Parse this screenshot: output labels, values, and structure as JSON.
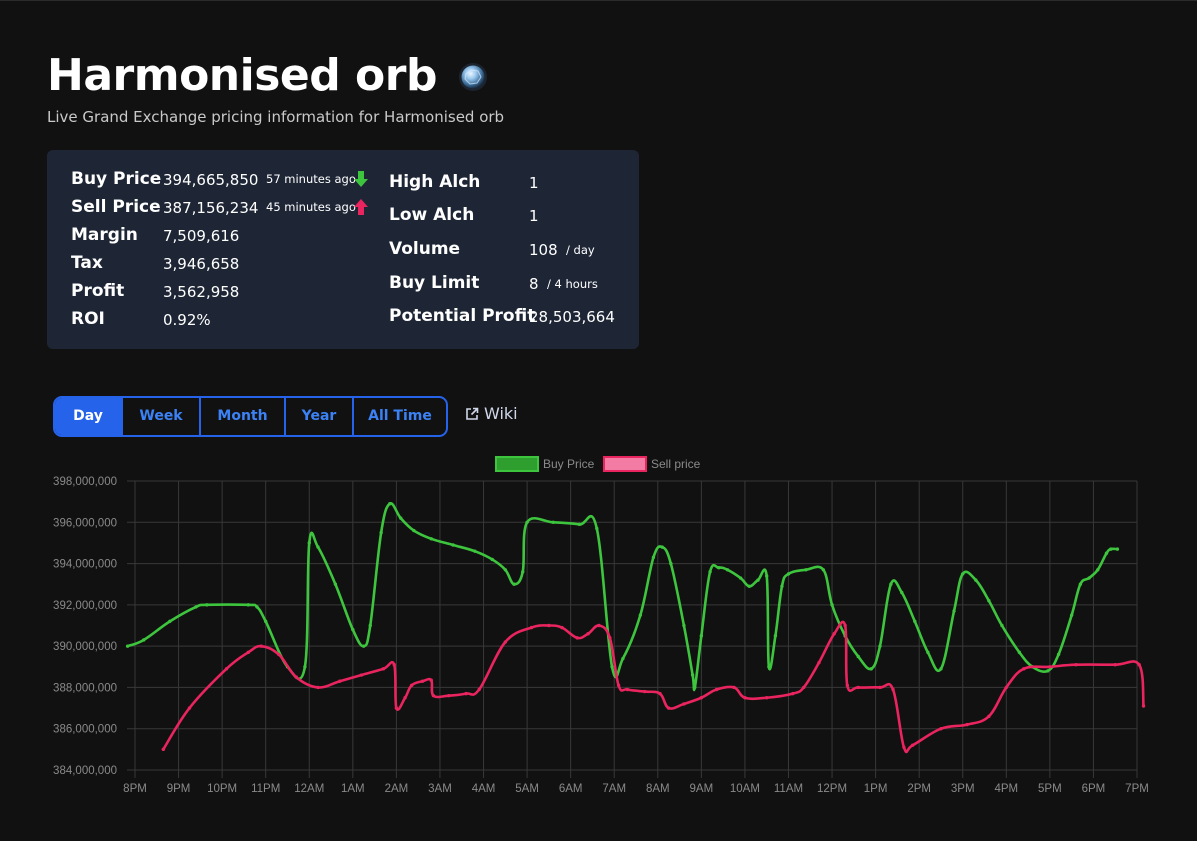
{
  "header": {
    "title": "Harmonised orb",
    "subtitle": "Live Grand Exchange pricing information for Harmonised orb",
    "icon": "harmonised-orb-icon"
  },
  "stats": {
    "buy_price": {
      "label": "Buy Price",
      "value": "394,665,850",
      "ago": "57 minutes ago",
      "trend": "down",
      "trend_color": "#3ec53e"
    },
    "sell_price": {
      "label": "Sell Price",
      "value": "387,156,234",
      "ago": "45 minutes ago",
      "trend": "up",
      "trend_color": "#e9245e"
    },
    "margin": {
      "label": "Margin",
      "value": "7,509,616"
    },
    "tax": {
      "label": "Tax",
      "value": "3,946,658"
    },
    "profit": {
      "label": "Profit",
      "value": "3,562,958"
    },
    "roi": {
      "label": "ROI",
      "value": "0.92%"
    },
    "high_alch": {
      "label": "High Alch",
      "value": "1"
    },
    "low_alch": {
      "label": "Low Alch",
      "value": "1"
    },
    "volume": {
      "label": "Volume",
      "value": "108",
      "unit": "/ day"
    },
    "buy_limit": {
      "label": "Buy Limit",
      "value": "8",
      "unit": "/ 4 hours"
    },
    "potential_profit": {
      "label": "Potential Profit",
      "value": "28,503,664"
    }
  },
  "tabs": [
    {
      "label": "Day",
      "active": true
    },
    {
      "label": "Week",
      "active": false
    },
    {
      "label": "Month",
      "active": false
    },
    {
      "label": "Year",
      "active": false
    },
    {
      "label": "All Time",
      "active": false
    }
  ],
  "wiki_link": "Wiki",
  "colors": {
    "background": "#111111",
    "panel": "#1e2636",
    "accent": "#2563eb",
    "buy": "#3ec53e",
    "sell": "#e9245e"
  },
  "chart_data": {
    "type": "line",
    "legend_position": "top",
    "grid": true,
    "x_ticks": [
      "8PM",
      "9PM",
      "10PM",
      "11PM",
      "12AM",
      "1AM",
      "2AM",
      "3AM",
      "4AM",
      "5AM",
      "6AM",
      "7AM",
      "8AM",
      "9AM",
      "10AM",
      "11AM",
      "12PM",
      "1PM",
      "2PM",
      "3PM",
      "4PM",
      "5PM",
      "6PM",
      "7PM"
    ],
    "y_ticks": [
      "384,000,000",
      "386,000,000",
      "388,000,000",
      "390,000,000",
      "392,000,000",
      "394,000,000",
      "396,000,000",
      "398,000,000"
    ],
    "xlim": [
      0,
      23.0
    ],
    "ylim": [
      384000000,
      398000000
    ],
    "series": [
      {
        "name": "Buy Price",
        "color": "#3ec53e",
        "fill": "#2e9e2e",
        "points": [
          [
            -0.17,
            390000000
          ],
          [
            0.2,
            390300000
          ],
          [
            0.8,
            391200000
          ],
          [
            1.4,
            391900000
          ],
          [
            1.65,
            392000000
          ],
          [
            2.6,
            392000000
          ],
          [
            2.8,
            391900000
          ],
          [
            3.0,
            391200000
          ],
          [
            3.5,
            389000000
          ],
          [
            3.9,
            389000000
          ],
          [
            4.0,
            395000000
          ],
          [
            4.2,
            394800000
          ],
          [
            4.6,
            393000000
          ],
          [
            5.0,
            390800000
          ],
          [
            5.25,
            390000000
          ],
          [
            5.4,
            391000000
          ],
          [
            5.65,
            395500000
          ],
          [
            5.85,
            396900000
          ],
          [
            6.1,
            396200000
          ],
          [
            6.4,
            395600000
          ],
          [
            6.8,
            395200000
          ],
          [
            7.3,
            394900000
          ],
          [
            7.8,
            394600000
          ],
          [
            8.2,
            394200000
          ],
          [
            8.5,
            393700000
          ],
          [
            8.7,
            393000000
          ],
          [
            8.9,
            393600000
          ],
          [
            9.0,
            396000000
          ],
          [
            9.6,
            396000000
          ],
          [
            10.2,
            395900000
          ],
          [
            10.6,
            395700000
          ],
          [
            10.95,
            389000000
          ],
          [
            11.2,
            389400000
          ],
          [
            11.6,
            391500000
          ],
          [
            11.9,
            394300000
          ],
          [
            12.1,
            394800000
          ],
          [
            12.3,
            394000000
          ],
          [
            12.6,
            391000000
          ],
          [
            12.8,
            388600000
          ],
          [
            12.85,
            388000000
          ],
          [
            13.0,
            390500000
          ],
          [
            13.2,
            393600000
          ],
          [
            13.4,
            393800000
          ],
          [
            13.6,
            393700000
          ],
          [
            13.9,
            393300000
          ],
          [
            14.1,
            392900000
          ],
          [
            14.3,
            393200000
          ],
          [
            14.5,
            393400000
          ],
          [
            14.55,
            389000000
          ],
          [
            14.7,
            390500000
          ],
          [
            14.85,
            392900000
          ],
          [
            15.0,
            393500000
          ],
          [
            15.4,
            393700000
          ],
          [
            15.8,
            393700000
          ],
          [
            16.0,
            392000000
          ],
          [
            16.3,
            390500000
          ],
          [
            16.6,
            389500000
          ],
          [
            16.9,
            388900000
          ],
          [
            17.1,
            390000000
          ],
          [
            17.35,
            393000000
          ],
          [
            17.6,
            392600000
          ],
          [
            17.9,
            391200000
          ],
          [
            18.2,
            389700000
          ],
          [
            18.5,
            388900000
          ],
          [
            18.8,
            391700000
          ],
          [
            19.0,
            393500000
          ],
          [
            19.3,
            393200000
          ],
          [
            19.6,
            392200000
          ],
          [
            19.9,
            391000000
          ],
          [
            20.3,
            389700000
          ],
          [
            20.6,
            389000000
          ],
          [
            20.95,
            388800000
          ],
          [
            21.2,
            389600000
          ],
          [
            21.5,
            391500000
          ],
          [
            21.7,
            393000000
          ],
          [
            21.9,
            393300000
          ],
          [
            22.1,
            393700000
          ],
          [
            22.3,
            394500000
          ],
          [
            22.4,
            394700000
          ],
          [
            22.55,
            394700000
          ]
        ]
      },
      {
        "name": "Sell price",
        "color": "#e9245e",
        "fill": "#f27ca4",
        "points": [
          [
            0.65,
            385000000
          ],
          [
            1.25,
            387000000
          ],
          [
            2.1,
            388900000
          ],
          [
            2.6,
            389700000
          ],
          [
            2.9,
            390000000
          ],
          [
            3.3,
            389600000
          ],
          [
            3.7,
            388500000
          ],
          [
            4.2,
            388000000
          ],
          [
            4.7,
            388300000
          ],
          [
            5.2,
            388600000
          ],
          [
            5.7,
            388900000
          ],
          [
            5.95,
            389100000
          ],
          [
            6.0,
            387000000
          ],
          [
            6.2,
            387500000
          ],
          [
            6.35,
            388100000
          ],
          [
            6.6,
            388300000
          ],
          [
            6.8,
            388350000
          ],
          [
            6.85,
            387600000
          ],
          [
            7.2,
            387600000
          ],
          [
            7.6,
            387700000
          ],
          [
            7.9,
            387900000
          ],
          [
            8.5,
            390200000
          ],
          [
            9.1,
            390900000
          ],
          [
            9.5,
            391000000
          ],
          [
            9.8,
            390900000
          ],
          [
            10.15,
            390400000
          ],
          [
            10.4,
            390600000
          ],
          [
            10.65,
            391000000
          ],
          [
            10.9,
            390400000
          ],
          [
            11.1,
            388100000
          ],
          [
            11.3,
            387900000
          ],
          [
            11.7,
            387800000
          ],
          [
            12.05,
            387700000
          ],
          [
            12.25,
            387000000
          ],
          [
            12.6,
            387200000
          ],
          [
            13.0,
            387500000
          ],
          [
            13.35,
            387900000
          ],
          [
            13.75,
            388000000
          ],
          [
            14.0,
            387500000
          ],
          [
            14.5,
            387500000
          ],
          [
            15.1,
            387700000
          ],
          [
            15.35,
            388000000
          ],
          [
            15.7,
            389200000
          ],
          [
            16.05,
            390600000
          ],
          [
            16.3,
            391000000
          ],
          [
            16.35,
            388100000
          ],
          [
            16.6,
            388000000
          ],
          [
            17.1,
            388000000
          ],
          [
            17.4,
            387900000
          ],
          [
            17.65,
            385100000
          ],
          [
            17.85,
            385200000
          ],
          [
            18.5,
            386000000
          ],
          [
            19.1,
            386200000
          ],
          [
            19.6,
            386600000
          ],
          [
            20.0,
            388000000
          ],
          [
            20.4,
            388900000
          ],
          [
            21.0,
            389000000
          ],
          [
            21.6,
            389100000
          ],
          [
            22.5,
            389100000
          ],
          [
            23.05,
            389100000
          ],
          [
            23.15,
            387100000
          ]
        ]
      }
    ]
  }
}
